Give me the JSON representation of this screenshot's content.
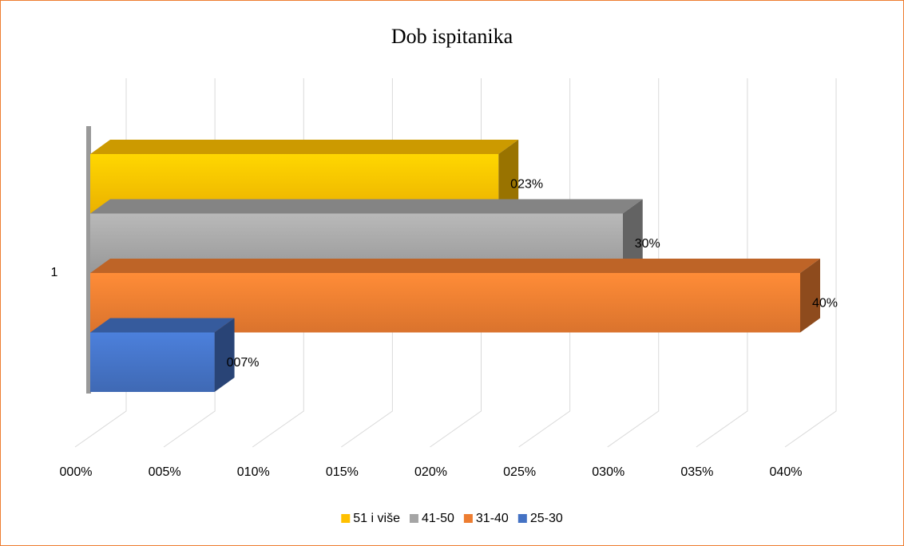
{
  "chart_data": {
    "type": "bar3d_horizontal",
    "title": "Dob ispitanika",
    "categories": [
      "1"
    ],
    "series": [
      {
        "name": "51 i više",
        "color": "#ffc000",
        "values": [
          23
        ],
        "value_labels": [
          "023%"
        ]
      },
      {
        "name": "41-50",
        "color": "#a5a5a5",
        "values": [
          30
        ],
        "value_labels": [
          "30%"
        ]
      },
      {
        "name": "31-40",
        "color": "#ed7d31",
        "values": [
          40
        ],
        "value_labels": [
          "40%"
        ]
      },
      {
        "name": "25-30",
        "color": "#4472c4",
        "values": [
          7
        ],
        "value_labels": [
          "007%"
        ]
      }
    ],
    "xlim": [
      0,
      40
    ],
    "xticks": [
      {
        "value": 0,
        "label": "000%"
      },
      {
        "value": 5,
        "label": "005%"
      },
      {
        "value": 10,
        "label": "010%"
      },
      {
        "value": 15,
        "label": "015%"
      },
      {
        "value": 20,
        "label": "020%"
      },
      {
        "value": 25,
        "label": "025%"
      },
      {
        "value": 30,
        "label": "030%"
      },
      {
        "value": 35,
        "label": "035%"
      },
      {
        "value": 40,
        "label": "040%"
      }
    ],
    "grid": true,
    "legend": "bottom"
  }
}
